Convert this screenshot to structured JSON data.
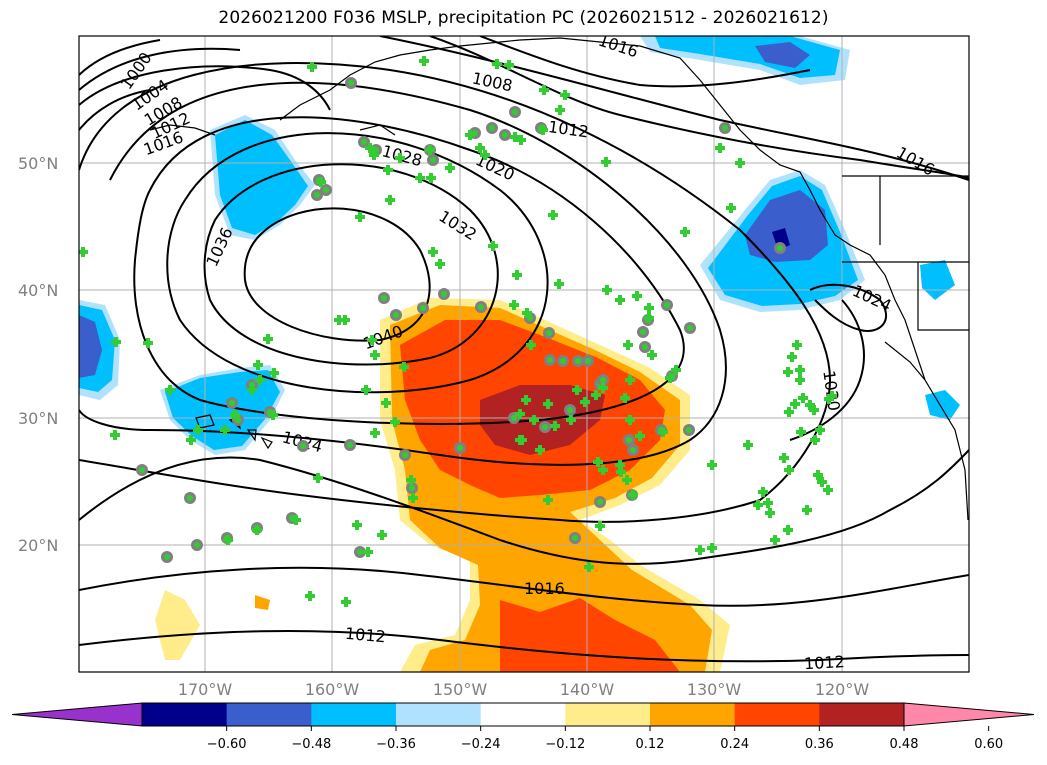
{
  "title": "2026021200 F036 MSLP, precipitation PC (2026021512 - 2026021612)",
  "lat_labels": [
    "50°N",
    "40°N",
    "30°N",
    "20°N"
  ],
  "lon_labels": [
    "170°W",
    "160°W",
    "150°W",
    "140°W",
    "130°W",
    "120°W"
  ],
  "contour_labels": [
    "1000",
    "1004",
    "1008",
    "1012",
    "1016",
    "1020",
    "1024",
    "1028",
    "1032",
    "1036",
    "1040"
  ],
  "colorbar": {
    "ticks": [
      "−0.60",
      "−0.48",
      "−0.36",
      "−0.24",
      "−0.12",
      "0.12",
      "0.24",
      "0.36",
      "0.48",
      "0.60"
    ],
    "colors": [
      "#9932cc",
      "#00008b",
      "#3a5fcd",
      "#00bfff",
      "#b0e2ff",
      "#ffffff",
      "#ffec8b",
      "#ffa500",
      "#ff4500",
      "#b22222",
      "#ff88aa"
    ]
  },
  "colors": {
    "land_outline": "#000000",
    "marker_fill": "#32cd32",
    "marker_circle": "#808080",
    "grid": "#b0b0b0"
  }
}
